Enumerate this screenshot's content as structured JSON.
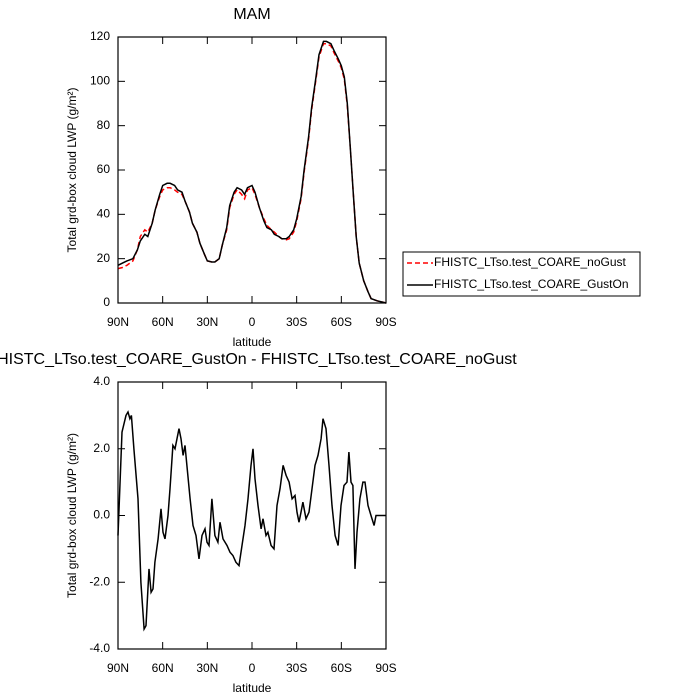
{
  "chart_data": [
    {
      "type": "line",
      "title": "MAM",
      "x_label": "latitude",
      "y_label": "Total grd-box cloud LWP (g/m²)",
      "xlim": [
        90,
        -90
      ],
      "ylim": [
        0,
        120
      ],
      "xticks": [
        {
          "value": 90,
          "label": "90N"
        },
        {
          "value": 60,
          "label": "60N"
        },
        {
          "value": 30,
          "label": "30N"
        },
        0,
        {
          "value": -30,
          "label": "30S"
        },
        {
          "value": -60,
          "label": "60S"
        },
        {
          "value": -90,
          "label": "90S"
        }
      ],
      "yticks": [
        0,
        20,
        40,
        60,
        80,
        100,
        120
      ],
      "legend": "right",
      "x": [
        90,
        87,
        84,
        80,
        77,
        75,
        72,
        70,
        67,
        65,
        62,
        60,
        57,
        55,
        52,
        50,
        47,
        45,
        42,
        40,
        37,
        35,
        32,
        30,
        27,
        25,
        22,
        20,
        17,
        15,
        12,
        10,
        7,
        5,
        3,
        0,
        -2,
        -5,
        -8,
        -10,
        -13,
        -15,
        -18,
        -20,
        -23,
        -25,
        -28,
        -30,
        -33,
        -35,
        -38,
        -40,
        -43,
        -45,
        -48,
        -50,
        -53,
        -55,
        -58,
        -60,
        -62,
        -64,
        -66,
        -68,
        -70,
        -72,
        -75,
        -78,
        -80,
        -84,
        -87,
        -90
      ],
      "series": [
        {
          "name": "FHISTC_LTso.test_COARE_noGust",
          "color": "#ff0000",
          "dashed": true,
          "values": [
            15.5,
            16,
            17,
            19,
            24,
            30,
            33,
            32,
            36,
            42,
            48,
            51,
            52,
            52,
            51,
            50,
            49,
            46,
            41,
            36,
            32,
            27,
            22,
            19,
            18.5,
            18.5,
            20,
            26,
            33,
            43,
            49,
            51,
            49,
            47,
            51,
            52,
            49,
            43,
            38,
            35,
            33,
            32,
            30,
            29,
            28.5,
            29,
            32,
            37,
            47,
            59,
            74,
            87,
            101,
            111,
            117,
            117,
            116,
            113,
            109,
            106,
            101,
            89,
            70,
            50,
            30,
            18,
            10,
            5,
            2,
            1,
            0.5,
            0
          ]
        },
        {
          "name": "FHISTC_LTso.test_COARE_GustOn",
          "color": "#000000",
          "dashed": false,
          "values": [
            17,
            18,
            19,
            20,
            24,
            28,
            31,
            30,
            36,
            42,
            49,
            53,
            54,
            54,
            53,
            51,
            50,
            46,
            41,
            36,
            32,
            27,
            22,
            19,
            18.5,
            18.5,
            20,
            26,
            34,
            44,
            50,
            52,
            51,
            49,
            52,
            53,
            50,
            43,
            37,
            34,
            33,
            31,
            30,
            29,
            29,
            30,
            33,
            38,
            48,
            60,
            75,
            88,
            102,
            112,
            118,
            118,
            117,
            114,
            110,
            107,
            102,
            90,
            70,
            50,
            30,
            18,
            10,
            5,
            2,
            1,
            0.5,
            0
          ]
        }
      ]
    },
    {
      "type": "line",
      "title": "FHISTC_LTso.test_COARE_GustOn - FHISTC_LTso.test_COARE_noGust",
      "x_label": "latitude",
      "y_label": "Total grd-box cloud LWP (g/m²)",
      "xlim": [
        90,
        -90
      ],
      "ylim": [
        -4,
        4
      ],
      "xticks": [
        {
          "value": 90,
          "label": "90N"
        },
        {
          "value": 60,
          "label": "60N"
        },
        {
          "value": 30,
          "label": "30N"
        },
        0,
        {
          "value": -30,
          "label": "30S"
        },
        {
          "value": -60,
          "label": "60S"
        },
        {
          "value": -90,
          "label": "90S"
        }
      ],
      "yticks": [
        {
          "value": -4,
          "label": "-4.0"
        },
        {
          "value": -2,
          "label": "-2.0"
        },
        {
          "value": 0,
          "label": "0.0"
        },
        {
          "value": 2,
          "label": "2.0"
        },
        {
          "value": 4,
          "label": "4.0"
        }
      ],
      "color": "#000000",
      "x": [
        90,
        87.3,
        84.6,
        83.3,
        82,
        81,
        79.3,
        76.6,
        74.6,
        72.5,
        71.2,
        69.2,
        67.8,
        66.5,
        65.2,
        63.1,
        61.1,
        59.8,
        58.4,
        56.4,
        55.1,
        53.1,
        51.7,
        50.4,
        49,
        47.7,
        46.3,
        45,
        43.7,
        41.6,
        39.6,
        37.6,
        35.6,
        33.6,
        31.6,
        30.2,
        28.9,
        26.9,
        24.9,
        22.9,
        21.5,
        19.5,
        16.8,
        14.8,
        12.8,
        10.8,
        8.7,
        6.7,
        4.7,
        2.7,
        0.7,
        -0.7,
        -2,
        -4,
        -6.1,
        -7.4,
        -9.4,
        -10.7,
        -12.8,
        -14.8,
        -16.8,
        -18.8,
        -20.9,
        -22.9,
        -24.9,
        -26.9,
        -28.9,
        -30.2,
        -31.6,
        -32.9,
        -34.2,
        -36.3,
        -38.3,
        -40.3,
        -42.3,
        -44.3,
        -46.4,
        -47.7,
        -49.7,
        -51.7,
        -53.7,
        -55.8,
        -57.8,
        -59.8,
        -61.8,
        -63.8,
        -65.1,
        -66.5,
        -67.8,
        -69.2,
        -70.5,
        -72.5,
        -74.5,
        -75.9,
        -77.9,
        -79.9,
        -82,
        -83.3,
        -85.3,
        -87.3,
        -90
      ],
      "values": [
        -0.6,
        2.5,
        3.0,
        3.1,
        2.9,
        3.0,
        2.0,
        0.5,
        -2.0,
        -3.4,
        -3.3,
        -1.6,
        -2.3,
        -2.2,
        -1.4,
        -0.7,
        0.2,
        -0.5,
        -0.7,
        0,
        0.8,
        2.1,
        2.0,
        2.3,
        2.6,
        2.3,
        1.8,
        2.1,
        1.5,
        0.5,
        -0.3,
        -0.6,
        -1.3,
        -0.6,
        -0.4,
        -0.8,
        -0.9,
        0.5,
        -0.6,
        -0.8,
        -0.2,
        -0.7,
        -0.9,
        -1.1,
        -1.2,
        -1.4,
        -1.5,
        -0.9,
        -0.3,
        0.5,
        1.5,
        2.0,
        1.1,
        0.3,
        -0.4,
        -0.1,
        -0.6,
        -0.5,
        -0.9,
        -1.0,
        0.3,
        0.8,
        1.5,
        1.2,
        1.0,
        0.5,
        0.6,
        0.1,
        -0.2,
        0.1,
        0.4,
        -0.1,
        0.1,
        0.8,
        1.5,
        1.8,
        2.3,
        2.9,
        2.6,
        1.5,
        0.3,
        -0.6,
        -0.9,
        0.3,
        0.9,
        1.0,
        1.9,
        1.0,
        0.9,
        -1.6,
        -0.5,
        0.5,
        1.0,
        1.0,
        0.3,
        0.0,
        -0.3,
        0.0,
        0.0,
        0.0,
        0.0
      ]
    }
  ]
}
